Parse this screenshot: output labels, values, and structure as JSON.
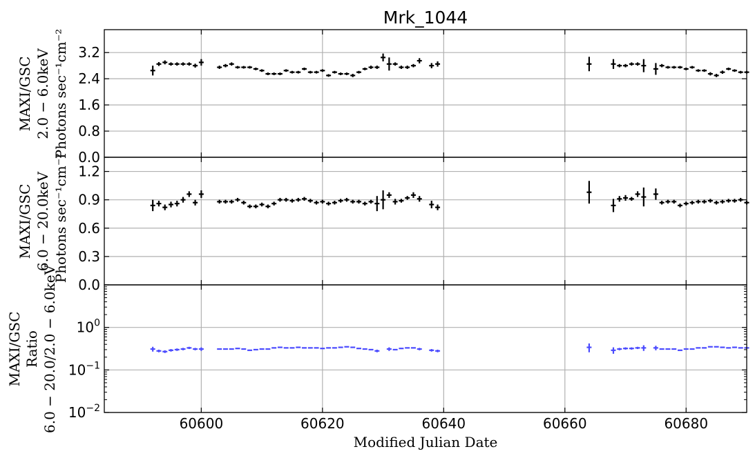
{
  "chart_data": [
    {
      "type": "scatter",
      "panel": "top",
      "title": "Mrk_1044",
      "ylabel": [
        "MAXI/GSC",
        "2.0 − 6.0keV",
        "Photons sec⁻¹cm⁻²"
      ],
      "ylim": [
        0,
        3.9
      ],
      "yticks": [
        0.0,
        0.8,
        1.6,
        2.4,
        3.2
      ],
      "ytick_labels": [
        "0.0",
        "0.8",
        "1.6",
        "2.4",
        "3.2"
      ],
      "grid": true,
      "series": [
        {
          "marker_color": "#000000",
          "x": [
            60592,
            60593,
            60594,
            60595,
            60596,
            60597,
            60598,
            60599,
            60600,
            60603,
            60604,
            60605,
            60606,
            60607,
            60608,
            60609,
            60610,
            60611,
            60612,
            60613,
            60614,
            60615,
            60616,
            60617,
            60618,
            60619,
            60620,
            60621,
            60622,
            60623,
            60624,
            60625,
            60626,
            60627,
            60628,
            60629,
            60630,
            60631,
            60632,
            60633,
            60634,
            60635,
            60636,
            60638,
            60639,
            60664,
            60668,
            60669,
            60670,
            60671,
            60672,
            60673,
            60675,
            60676,
            60677,
            60678,
            60679,
            60680,
            60681,
            60682,
            60683,
            60684,
            60685,
            60686,
            60687,
            60688,
            60689,
            60690
          ],
          "y": [
            2.65,
            2.85,
            2.9,
            2.85,
            2.85,
            2.85,
            2.85,
            2.8,
            2.9,
            2.75,
            2.8,
            2.85,
            2.75,
            2.75,
            2.75,
            2.7,
            2.65,
            2.55,
            2.55,
            2.55,
            2.65,
            2.6,
            2.6,
            2.7,
            2.6,
            2.6,
            2.65,
            2.5,
            2.6,
            2.55,
            2.55,
            2.5,
            2.6,
            2.7,
            2.75,
            2.75,
            3.05,
            2.85,
            2.85,
            2.75,
            2.75,
            2.8,
            2.95,
            2.8,
            2.85,
            2.85,
            2.85,
            2.8,
            2.8,
            2.85,
            2.85,
            2.8,
            2.7,
            2.8,
            2.75,
            2.75,
            2.75,
            2.7,
            2.75,
            2.65,
            2.65,
            2.55,
            2.5,
            2.6,
            2.7,
            2.65,
            2.6,
            2.6
          ],
          "yerr": [
            0.15,
            0.06,
            0.06,
            0.05,
            0.05,
            0.05,
            0.05,
            0.06,
            0.1,
            0.05,
            0.05,
            0.05,
            0.04,
            0.04,
            0.04,
            0.04,
            0.04,
            0.04,
            0.04,
            0.04,
            0.04,
            0.04,
            0.04,
            0.04,
            0.04,
            0.04,
            0.04,
            0.04,
            0.04,
            0.04,
            0.04,
            0.05,
            0.04,
            0.04,
            0.05,
            0.05,
            0.12,
            0.2,
            0.05,
            0.05,
            0.05,
            0.05,
            0.08,
            0.08,
            0.08,
            0.22,
            0.15,
            0.05,
            0.05,
            0.05,
            0.05,
            0.2,
            0.18,
            0.05,
            0.04,
            0.04,
            0.04,
            0.04,
            0.04,
            0.04,
            0.04,
            0.05,
            0.05,
            0.05,
            0.04,
            0.04,
            0.04,
            0.04
          ]
        }
      ]
    },
    {
      "type": "scatter",
      "panel": "middle",
      "ylabel": [
        "MAXI/GSC",
        "6.0 − 20.0keV",
        "Photons sec⁻¹cm⁻²"
      ],
      "ylim": [
        0,
        1.35
      ],
      "yticks": [
        0.0,
        0.3,
        0.6,
        0.9,
        1.2
      ],
      "ytick_labels": [
        "0.0",
        "0.3",
        "0.6",
        "0.9",
        "1.2"
      ],
      "grid": true,
      "series": [
        {
          "marker_color": "#000000",
          "x": [
            60592,
            60593,
            60594,
            60595,
            60596,
            60597,
            60598,
            60599,
            60600,
            60603,
            60604,
            60605,
            60606,
            60607,
            60608,
            60609,
            60610,
            60611,
            60612,
            60613,
            60614,
            60615,
            60616,
            60617,
            60618,
            60619,
            60620,
            60621,
            60622,
            60623,
            60624,
            60625,
            60626,
            60627,
            60628,
            60629,
            60630,
            60631,
            60632,
            60633,
            60634,
            60635,
            60636,
            60638,
            60639,
            60664,
            60668,
            60669,
            60670,
            60671,
            60672,
            60673,
            60675,
            60676,
            60677,
            60678,
            60679,
            60680,
            60681,
            60682,
            60683,
            60684,
            60685,
            60686,
            60687,
            60688,
            60689,
            60690
          ],
          "y": [
            0.84,
            0.86,
            0.82,
            0.85,
            0.86,
            0.9,
            0.96,
            0.87,
            0.96,
            0.88,
            0.88,
            0.88,
            0.9,
            0.87,
            0.83,
            0.83,
            0.85,
            0.83,
            0.86,
            0.9,
            0.9,
            0.89,
            0.9,
            0.91,
            0.89,
            0.87,
            0.88,
            0.86,
            0.87,
            0.89,
            0.9,
            0.88,
            0.88,
            0.86,
            0.88,
            0.86,
            0.9,
            0.95,
            0.88,
            0.89,
            0.92,
            0.95,
            0.91,
            0.85,
            0.82,
            0.98,
            0.84,
            0.91,
            0.92,
            0.91,
            0.96,
            0.93,
            0.96,
            0.87,
            0.88,
            0.88,
            0.84,
            0.86,
            0.87,
            0.88,
            0.88,
            0.89,
            0.87,
            0.88,
            0.89,
            0.89,
            0.9,
            0.87
          ],
          "yerr": [
            0.06,
            0.03,
            0.03,
            0.03,
            0.03,
            0.03,
            0.03,
            0.03,
            0.04,
            0.02,
            0.02,
            0.02,
            0.02,
            0.02,
            0.02,
            0.02,
            0.02,
            0.02,
            0.02,
            0.02,
            0.02,
            0.02,
            0.02,
            0.02,
            0.02,
            0.02,
            0.02,
            0.02,
            0.02,
            0.02,
            0.02,
            0.02,
            0.02,
            0.02,
            0.02,
            0.08,
            0.1,
            0.03,
            0.03,
            0.02,
            0.02,
            0.03,
            0.03,
            0.04,
            0.03,
            0.12,
            0.07,
            0.03,
            0.03,
            0.02,
            0.03,
            0.1,
            0.06,
            0.02,
            0.02,
            0.02,
            0.02,
            0.02,
            0.02,
            0.02,
            0.02,
            0.02,
            0.02,
            0.02,
            0.02,
            0.02,
            0.02,
            0.02
          ]
        }
      ]
    },
    {
      "type": "scatter",
      "panel": "bottom",
      "ylabel": [
        "MAXI/GSC",
        "Ratio",
        "6.0 − 20.0/2.0 − 6.0keV"
      ],
      "xlabel": "Modified Julian Date",
      "yscale": "log",
      "ylim": [
        0.01,
        10
      ],
      "yticks": [
        0.01,
        0.1,
        1
      ],
      "ytick_labels": [
        {
          "base": "10",
          "exp": "−2"
        },
        {
          "base": "10",
          "exp": "−1"
        },
        {
          "base": "10",
          "exp": "0"
        }
      ],
      "xlim": [
        60584,
        60690
      ],
      "xticks": [
        60600,
        60620,
        60640,
        60660,
        60680
      ],
      "xtick_labels": [
        "60600",
        "60620",
        "60640",
        "60660",
        "60680"
      ],
      "grid": true,
      "series": [
        {
          "marker_color": "#4a4aff",
          "x": [
            60592,
            60593,
            60594,
            60595,
            60596,
            60597,
            60598,
            60599,
            60600,
            60603,
            60604,
            60605,
            60606,
            60607,
            60608,
            60609,
            60610,
            60611,
            60612,
            60613,
            60614,
            60615,
            60616,
            60617,
            60618,
            60619,
            60620,
            60621,
            60622,
            60623,
            60624,
            60625,
            60626,
            60627,
            60628,
            60629,
            60631,
            60632,
            60633,
            60634,
            60635,
            60636,
            60638,
            60639,
            60664,
            60668,
            60669,
            60670,
            60671,
            60672,
            60673,
            60675,
            60676,
            60677,
            60678,
            60679,
            60680,
            60681,
            60682,
            60683,
            60684,
            60685,
            60686,
            60687,
            60688,
            60689,
            60690
          ],
          "y": [
            0.31,
            0.28,
            0.27,
            0.29,
            0.3,
            0.31,
            0.33,
            0.31,
            0.31,
            0.31,
            0.31,
            0.31,
            0.32,
            0.31,
            0.29,
            0.3,
            0.31,
            0.31,
            0.33,
            0.34,
            0.33,
            0.33,
            0.34,
            0.33,
            0.33,
            0.33,
            0.32,
            0.33,
            0.33,
            0.34,
            0.35,
            0.34,
            0.32,
            0.31,
            0.3,
            0.28,
            0.31,
            0.3,
            0.32,
            0.33,
            0.33,
            0.31,
            0.29,
            0.28,
            0.34,
            0.29,
            0.31,
            0.32,
            0.32,
            0.33,
            0.33,
            0.33,
            0.31,
            0.31,
            0.31,
            0.29,
            0.31,
            0.31,
            0.33,
            0.33,
            0.35,
            0.35,
            0.34,
            0.33,
            0.34,
            0.33,
            0.33
          ],
          "yerr": [
            0.04,
            0.02,
            0.02,
            0.02,
            0.02,
            0.02,
            0.02,
            0.02,
            0.03,
            0.01,
            0.01,
            0.01,
            0.01,
            0.01,
            0.01,
            0.01,
            0.01,
            0.01,
            0.01,
            0.01,
            0.01,
            0.01,
            0.01,
            0.01,
            0.01,
            0.01,
            0.01,
            0.01,
            0.01,
            0.01,
            0.01,
            0.01,
            0.01,
            0.01,
            0.01,
            0.02,
            0.03,
            0.01,
            0.01,
            0.01,
            0.01,
            0.02,
            0.02,
            0.02,
            0.08,
            0.05,
            0.02,
            0.02,
            0.02,
            0.02,
            0.05,
            0.04,
            0.01,
            0.01,
            0.01,
            0.01,
            0.01,
            0.01,
            0.01,
            0.01,
            0.01,
            0.01,
            0.01,
            0.01,
            0.01,
            0.01,
            0.01
          ]
        }
      ]
    }
  ]
}
